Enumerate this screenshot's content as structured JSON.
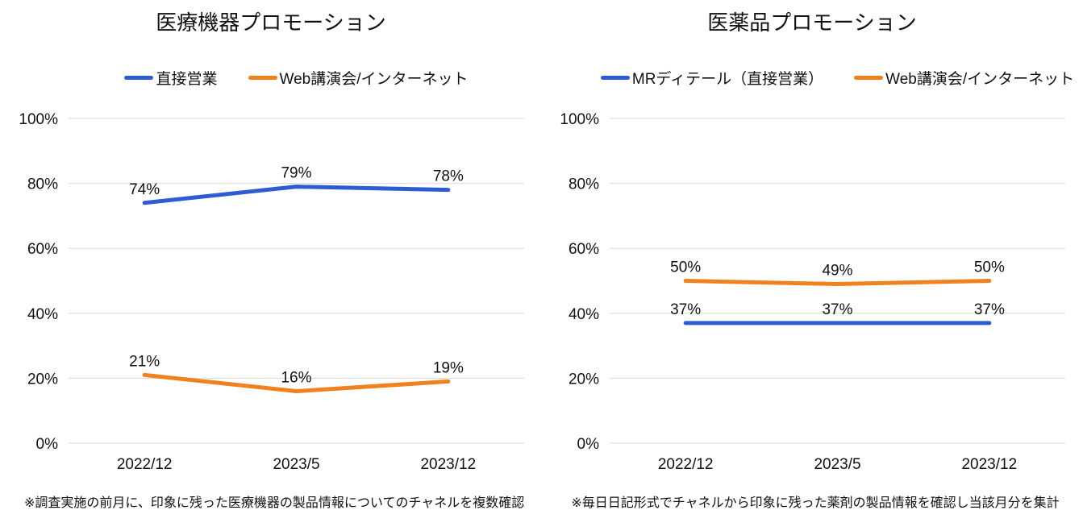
{
  "accent_colors": {
    "blue": "#2d5cd3",
    "orange": "#f1801e",
    "gridline": "#d9d9d9",
    "text": "#111111"
  },
  "chart_data": [
    {
      "type": "line",
      "title": "医療機器プロモーション",
      "categories": [
        "2022/12",
        "2023/5",
        "2023/12"
      ],
      "series": [
        {
          "name": "直接営業",
          "color": "#2d5cd3",
          "values": [
            74,
            79,
            78
          ]
        },
        {
          "name": "Web講演会/インターネット",
          "color": "#f1801e",
          "values": [
            21,
            16,
            19
          ]
        }
      ],
      "data_labels": [
        [
          "74%",
          "79%",
          "78%"
        ],
        [
          "21%",
          "16%",
          "19%"
        ]
      ],
      "ylim": [
        0,
        100
      ],
      "yticks": [
        "0%",
        "20%",
        "40%",
        "60%",
        "80%",
        "100%"
      ],
      "grid": true,
      "legend_position": "top",
      "footnote": "※調査実施の前月に、印象に残った医療機器の製品情報についてのチャネルを複数確認"
    },
    {
      "type": "line",
      "title": "医薬品プロモーション",
      "categories": [
        "2022/12",
        "2023/5",
        "2023/12"
      ],
      "series": [
        {
          "name": "MRディテール（直接営業）",
          "color": "#2d5cd3",
          "values": [
            37,
            37,
            37
          ]
        },
        {
          "name": "Web講演会/インターネット",
          "color": "#f1801e",
          "values": [
            50,
            49,
            50
          ]
        }
      ],
      "data_labels": [
        [
          "37%",
          "37%",
          "37%"
        ],
        [
          "50%",
          "49%",
          "50%"
        ]
      ],
      "ylim": [
        0,
        100
      ],
      "yticks": [
        "0%",
        "20%",
        "40%",
        "60%",
        "80%",
        "100%"
      ],
      "grid": true,
      "legend_position": "top",
      "footnote": "※毎日日記形式でチャネルから印象に残った薬剤の製品情報を確認し当該月分を集計"
    }
  ]
}
